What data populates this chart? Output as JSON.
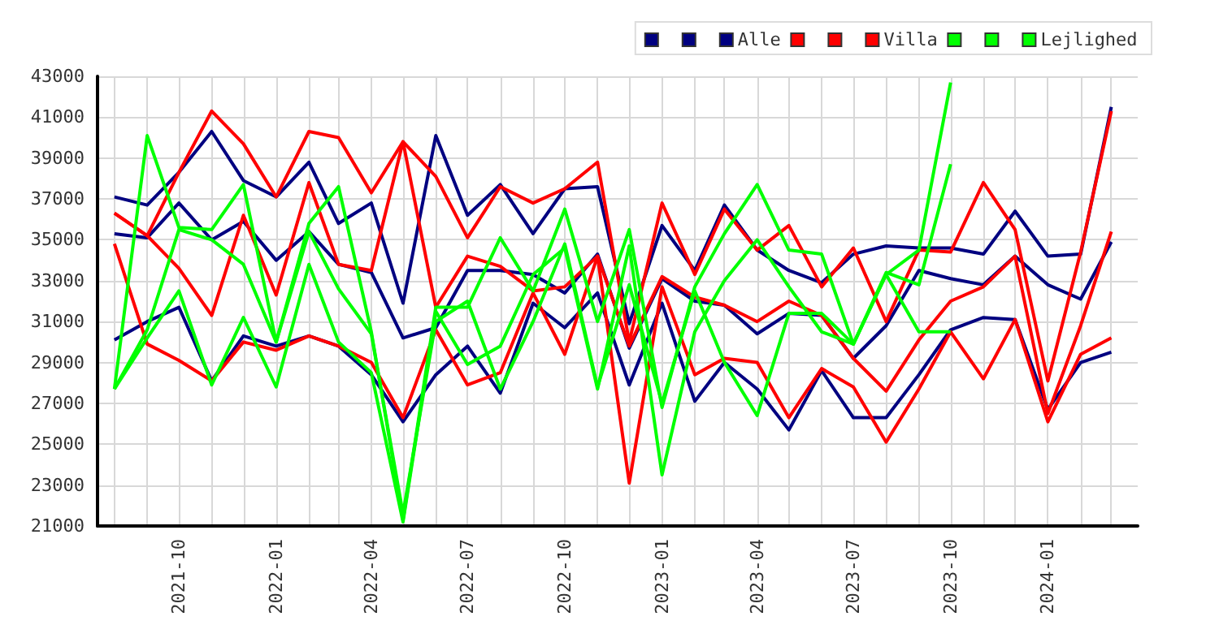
{
  "chart_data": {
    "type": "line",
    "x": [
      "2021-08",
      "2021-09",
      "2021-10",
      "2021-11",
      "2021-12",
      "2022-01",
      "2022-02",
      "2022-03",
      "2022-04",
      "2022-05",
      "2022-06",
      "2022-07",
      "2022-08",
      "2022-09",
      "2022-10",
      "2022-11",
      "2022-12",
      "2023-01",
      "2023-02",
      "2023-03",
      "2023-04",
      "2023-05",
      "2023-06",
      "2023-07",
      "2023-08",
      "2023-09",
      "2023-10",
      "2023-11",
      "2023-12",
      "2024-01",
      "2024-02",
      "2024-03"
    ],
    "series": [
      {
        "color": "#000080",
        "values": [
          37100,
          36700,
          38300,
          40300,
          37900,
          37100,
          38800,
          35800,
          36800,
          31900,
          40100,
          36200,
          37700,
          35300,
          37500,
          37600,
          30900,
          35700,
          33500,
          36700,
          34500,
          33500,
          32900,
          34300,
          34700,
          34600,
          34600,
          34300,
          36400,
          34200,
          34300,
          41500
        ]
      },
      {
        "color": "#000080",
        "values": [
          35300,
          35100,
          36800,
          35000,
          35900,
          34000,
          35400,
          33800,
          33400,
          30200,
          30700,
          33500,
          33500,
          33300,
          32400,
          34300,
          29700,
          33100,
          32000,
          31800,
          30400,
          31400,
          31300,
          29200,
          30800,
          33500,
          33100,
          32800,
          34200,
          32800,
          32100,
          34900
        ]
      },
      {
        "name": "Alle",
        "color": "#000080",
        "values": [
          30100,
          31000,
          31700,
          28100,
          30300,
          29800,
          30300,
          29800,
          28400,
          26100,
          28400,
          29800,
          27500,
          31900,
          30700,
          32400,
          27900,
          31900,
          27100,
          29000,
          27700,
          25700,
          28600,
          26300,
          26300,
          28400,
          30600,
          31200,
          31100,
          26700,
          29000,
          29500
        ]
      },
      {
        "color": "#ff0000",
        "values": [
          36300,
          35200,
          38300,
          41300,
          39700,
          37100,
          40300,
          40000,
          37300,
          39800,
          38100,
          35100,
          37600,
          36800,
          37500,
          38800,
          30000,
          36800,
          33300,
          36500,
          34500,
          35700,
          32700,
          34600,
          31000,
          34500,
          34400,
          37800,
          35500,
          28100,
          34400,
          41300
        ]
      },
      {
        "color": "#ff0000",
        "values": [
          36300,
          35200,
          33600,
          31300,
          36200,
          32300,
          37800,
          33800,
          33500,
          39800,
          31700,
          34200,
          33700,
          32500,
          32700,
          34200,
          29800,
          33200,
          32200,
          31800,
          31000,
          32000,
          31300,
          29200,
          27600,
          30100,
          32000,
          32700,
          34200,
          26500,
          30800,
          35400
        ]
      },
      {
        "name": "Villa",
        "color": "#ff0000",
        "values": [
          34800,
          29900,
          29100,
          28100,
          30000,
          29600,
          30300,
          29800,
          29000,
          26300,
          30600,
          27900,
          28500,
          32400,
          29400,
          34200,
          23100,
          32700,
          28400,
          29200,
          29000,
          26300,
          28700,
          27800,
          25100,
          27700,
          30500,
          28200,
          31100,
          26100,
          29400,
          30200
        ]
      },
      {
        "color": "#00ff00",
        "values": [
          27700,
          40100,
          35600,
          35500,
          37700,
          30000,
          35800,
          37600,
          30500,
          21300,
          31700,
          31700,
          35100,
          32500,
          36500,
          31000,
          35500,
          26800,
          32700,
          35300,
          37700,
          34500,
          34300,
          29900,
          33300,
          34500,
          42700,
          null,
          null,
          null,
          null,
          null
        ]
      },
      {
        "color": "#00ff00",
        "values": [
          27700,
          30600,
          35500,
          35000,
          33800,
          30000,
          35400,
          32600,
          30400,
          21600,
          31000,
          32000,
          27700,
          31000,
          34800,
          27800,
          32800,
          27000,
          32500,
          29000,
          26400,
          31400,
          31400,
          29900,
          33400,
          32800,
          38700,
          null,
          null,
          null,
          null,
          null
        ]
      },
      {
        "name": "Lejlighed",
        "color": "#00ff00",
        "values": [
          27700,
          30200,
          32500,
          27900,
          31200,
          27800,
          33800,
          30000,
          28500,
          21200,
          31500,
          28900,
          29800,
          33300,
          34600,
          27700,
          34700,
          23500,
          30500,
          33000,
          35000,
          32700,
          30500,
          29900,
          33300,
          30500,
          30500,
          null,
          null,
          null,
          null,
          null
        ]
      }
    ],
    "xlim": [
      "2021-07-16",
      "2024-03-26"
    ],
    "xticks": [
      {
        "value": "2021-08",
        "label": null
      },
      {
        "value": "2021-09",
        "label": null
      },
      "2021-10",
      {
        "value": "2021-11",
        "label": null
      },
      {
        "value": "2021-12",
        "label": null
      },
      "2022-01",
      {
        "value": "2022-02",
        "label": null
      },
      {
        "value": "2022-03",
        "label": null
      },
      "2022-04",
      {
        "value": "2022-05",
        "label": null
      },
      {
        "value": "2022-06",
        "label": null
      },
      "2022-07",
      {
        "value": "2022-08",
        "label": null
      },
      {
        "value": "2022-09",
        "label": null
      },
      "2022-10",
      {
        "value": "2022-11",
        "label": null
      },
      {
        "value": "2022-12",
        "label": null
      },
      "2023-01",
      {
        "value": "2023-02",
        "label": null
      },
      {
        "value": "2023-03",
        "label": null
      },
      "2023-04",
      {
        "value": "2023-05",
        "label": null
      },
      {
        "value": "2023-06",
        "label": null
      },
      "2023-07",
      {
        "value": "2023-08",
        "label": null
      },
      {
        "value": "2023-09",
        "label": null
      },
      "2023-10",
      {
        "value": "2023-11",
        "label": null
      },
      {
        "value": "2023-12",
        "label": null
      },
      "2024-01",
      {
        "value": "2024-02",
        "label": null
      },
      {
        "value": "2024-03",
        "label": null
      }
    ],
    "ylim": [
      21000,
      43000
    ],
    "yticks": [
      21000,
      23000,
      25000,
      27000,
      29000,
      31000,
      33000,
      35000,
      37000,
      39000,
      41000,
      43000
    ],
    "grid": true,
    "legend": "top right",
    "marker": "none",
    "line_style": "solid"
  }
}
